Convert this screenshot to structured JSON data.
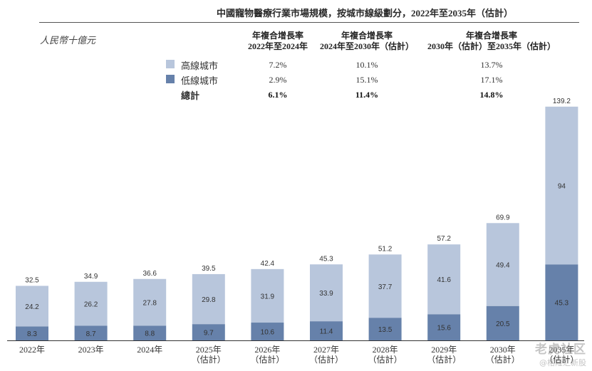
{
  "title": "中國寵物醫療行業市場規模，按城市線級劃分，2022年至2035年（估計）",
  "unit_label": "人民幣十億元",
  "cagr_headers": [
    {
      "line1": "年複合增長率",
      "line2": "2022年至2024年"
    },
    {
      "line1": "年複合增長率",
      "line2": "2024年至2030年（估計）"
    },
    {
      "line1": "年複合增長率",
      "line2": "2030年（估計）至2035年（估計）"
    }
  ],
  "legend": [
    {
      "label": "高線城市",
      "color": "#b8c6dc",
      "cagr": [
        "7.2%",
        "10.1%",
        "13.7%"
      ]
    },
    {
      "label": "低線城市",
      "color": "#6681aa",
      "cagr": [
        "2.9%",
        "15.1%",
        "17.1%"
      ]
    },
    {
      "label": "總計",
      "cagr": [
        "6.1%",
        "11.4%",
        "14.8%"
      ]
    }
  ],
  "chart_data": {
    "type": "bar",
    "stacked": true,
    "categories": [
      {
        "year": "2022年",
        "note": ""
      },
      {
        "year": "2023年",
        "note": ""
      },
      {
        "year": "2024年",
        "note": ""
      },
      {
        "year": "2025年",
        "note": "（估計）"
      },
      {
        "year": "2026年",
        "note": "（估計）"
      },
      {
        "year": "2027年",
        "note": "（估計）"
      },
      {
        "year": "2028年",
        "note": "（估計）"
      },
      {
        "year": "2029年",
        "note": "（估計）"
      },
      {
        "year": "2030年",
        "note": "（估計）"
      },
      {
        "year": "2035年",
        "note": "（估計）"
      }
    ],
    "series": [
      {
        "name": "低線城市",
        "color": "#6681aa",
        "values": [
          8.3,
          8.7,
          8.8,
          9.7,
          10.6,
          11.4,
          13.5,
          15.6,
          20.5,
          45.3
        ]
      },
      {
        "name": "高線城市",
        "color": "#b8c6dc",
        "values": [
          24.2,
          26.2,
          27.8,
          29.8,
          31.9,
          33.9,
          37.7,
          41.6,
          49.4,
          94.0
        ]
      }
    ],
    "totals": [
      32.5,
      34.9,
      36.6,
      39.5,
      42.4,
      45.3,
      51.2,
      57.2,
      69.9,
      139.2
    ],
    "ylim": [
      0,
      139.2
    ],
    "grid": false,
    "legend_position": "top-left"
  },
  "watermark": {
    "main": "老虎社区",
    "sub": "@格隆汇新股"
  }
}
